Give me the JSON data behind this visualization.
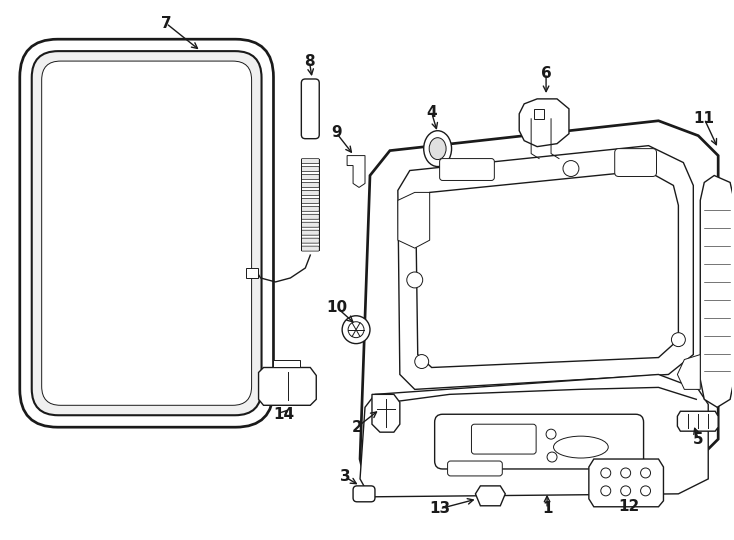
{
  "background_color": "#ffffff",
  "line_color": "#1a1a1a",
  "fig_w": 7.34,
  "fig_h": 5.4,
  "dpi": 100
}
